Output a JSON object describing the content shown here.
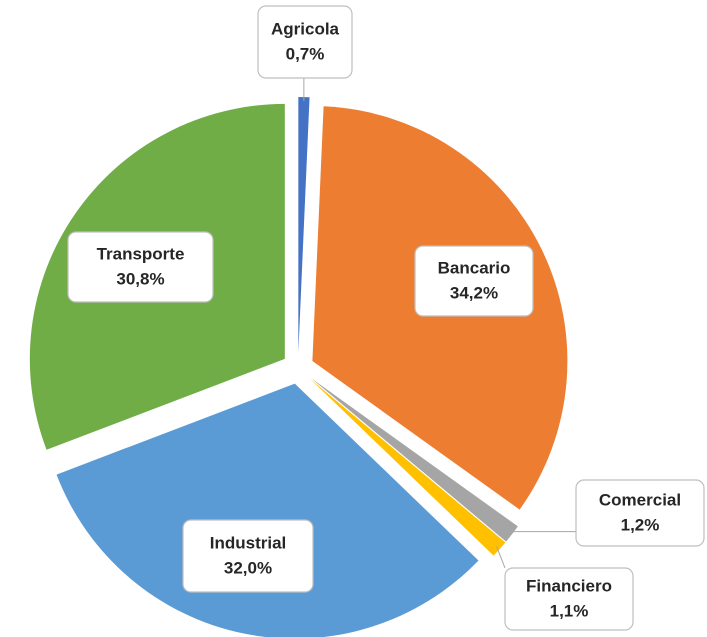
{
  "chart_data": {
    "type": "pie",
    "categories": [
      "Agricola",
      "Bancario",
      "Comercial",
      "Financiero",
      "Industrial",
      "Transporte"
    ],
    "values": [
      0.7,
      34.2,
      1.2,
      1.1,
      32.0,
      30.8
    ],
    "value_labels": [
      "0,7%",
      "34,2%",
      "1,2%",
      "1,1%",
      "32,0%",
      "30,8%"
    ],
    "colors": [
      "#4472c4",
      "#ed7d31",
      "#a5a5a5",
      "#ffc000",
      "#5b9bd5",
      "#70ad47"
    ]
  }
}
